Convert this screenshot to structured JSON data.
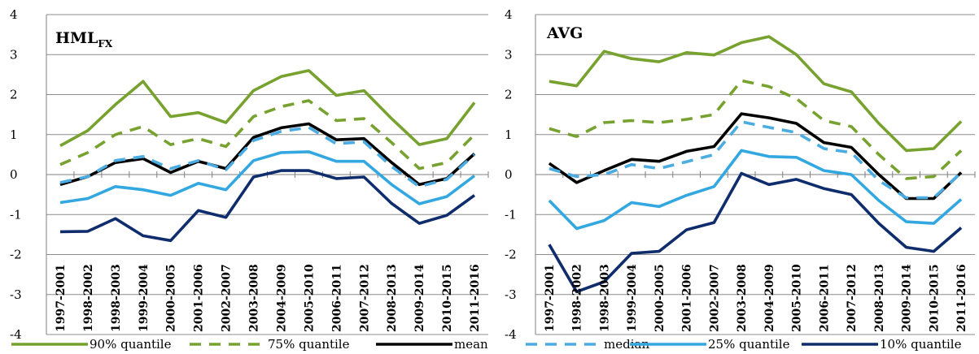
{
  "chart_data": [
    {
      "type": "line",
      "title": "HML",
      "title_subscript": "FX",
      "xlabel": "",
      "ylabel": "",
      "ylim": [
        -4,
        4
      ],
      "yticks": [
        "-4",
        "-3",
        "-2",
        "-1",
        "0",
        "1",
        "2",
        "3",
        "4"
      ],
      "grid": true,
      "categories": [
        "1997-2001",
        "1998-2002",
        "1998-2003",
        "1999-2004",
        "2000-2005",
        "2001-2006",
        "2002-2007",
        "2003-2008",
        "2004-2009",
        "2005-2010",
        "2006-2011",
        "2007-2012",
        "2008-2013",
        "2009-2014",
        "2010-2015",
        "2011-2016"
      ],
      "series": [
        {
          "name": "90% quantile",
          "color": "#77A22F",
          "dash": "solid",
          "values": [
            0.72,
            1.1,
            1.75,
            2.33,
            1.45,
            1.55,
            1.3,
            2.1,
            2.45,
            2.6,
            1.98,
            2.1,
            1.4,
            0.75,
            0.9,
            1.8
          ]
        },
        {
          "name": "75% quantile",
          "color": "#77A22F",
          "dash": "dashed",
          "values": [
            0.25,
            0.55,
            1.0,
            1.2,
            0.75,
            0.9,
            0.7,
            1.45,
            1.7,
            1.85,
            1.35,
            1.4,
            0.8,
            0.15,
            0.3,
            1.0
          ]
        },
        {
          "name": "mean",
          "color": "#000000",
          "dash": "solid",
          "values": [
            -0.25,
            -0.05,
            0.3,
            0.4,
            0.05,
            0.33,
            0.15,
            0.93,
            1.17,
            1.27,
            0.87,
            0.9,
            0.3,
            -0.25,
            -0.1,
            0.52
          ]
        },
        {
          "name": "median",
          "color": "#4BACE1",
          "dash": "dashed",
          "values": [
            -0.2,
            -0.05,
            0.35,
            0.45,
            0.15,
            0.35,
            0.12,
            0.85,
            1.08,
            1.18,
            0.77,
            0.82,
            0.2,
            -0.3,
            -0.12,
            0.5
          ]
        },
        {
          "name": "25% quantile",
          "color": "#33A8E0",
          "dash": "solid",
          "values": [
            -0.7,
            -0.6,
            -0.3,
            -0.38,
            -0.52,
            -0.22,
            -0.38,
            0.35,
            0.55,
            0.57,
            0.33,
            0.33,
            -0.25,
            -0.73,
            -0.55,
            -0.03
          ]
        },
        {
          "name": "10% quantile",
          "color": "#0F2C6C",
          "dash": "solid",
          "values": [
            -1.43,
            -1.42,
            -1.1,
            -1.53,
            -1.65,
            -0.9,
            -1.07,
            -0.06,
            0.1,
            0.1,
            -0.1,
            -0.06,
            -0.72,
            -1.22,
            -1.02,
            -0.52
          ]
        }
      ]
    },
    {
      "type": "line",
      "title": "AVG",
      "xlabel": "",
      "ylabel": "",
      "ylim": [
        -4,
        4
      ],
      "yticks": [
        "-4",
        "-3",
        "-2",
        "-1",
        "0",
        "1",
        "2",
        "3",
        "4"
      ],
      "grid": true,
      "categories": [
        "1997-2001",
        "1998-2002",
        "1998-2003",
        "1999-2004",
        "2000-2005",
        "2001-2006",
        "2002-2007",
        "2003-2008",
        "2004-2009",
        "2005-2010",
        "2006-2011",
        "2007-2012",
        "2008-2013",
        "2009-2014",
        "2010-2015",
        "2011-2016"
      ],
      "series": [
        {
          "name": "90% quantile",
          "color": "#77A22F",
          "dash": "solid",
          "values": [
            2.33,
            2.22,
            3.08,
            2.9,
            2.82,
            3.05,
            2.99,
            3.3,
            3.45,
            3.0,
            2.27,
            2.07,
            1.28,
            0.6,
            0.65,
            1.33
          ]
        },
        {
          "name": "75% quantile",
          "color": "#77A22F",
          "dash": "dashed",
          "values": [
            1.15,
            0.95,
            1.3,
            1.35,
            1.3,
            1.38,
            1.5,
            2.35,
            2.2,
            1.9,
            1.35,
            1.2,
            0.5,
            -0.1,
            -0.05,
            0.6
          ]
        },
        {
          "name": "mean",
          "color": "#000000",
          "dash": "solid",
          "values": [
            0.28,
            -0.2,
            0.1,
            0.38,
            0.33,
            0.58,
            0.7,
            1.52,
            1.42,
            1.28,
            0.8,
            0.68,
            0.0,
            -0.6,
            -0.6,
            0.05
          ]
        },
        {
          "name": "median",
          "color": "#4BACE1",
          "dash": "dashed",
          "values": [
            0.15,
            -0.05,
            0.0,
            0.25,
            0.15,
            0.32,
            0.5,
            1.32,
            1.18,
            1.05,
            0.65,
            0.55,
            -0.15,
            -0.58,
            -0.58,
            0.05
          ]
        },
        {
          "name": "25% quantile",
          "color": "#33A8E0",
          "dash": "solid",
          "values": [
            -0.65,
            -1.35,
            -1.15,
            -0.7,
            -0.8,
            -0.52,
            -0.3,
            0.6,
            0.45,
            0.43,
            0.1,
            0.0,
            -0.65,
            -1.18,
            -1.22,
            -0.62
          ]
        },
        {
          "name": "10% quantile",
          "color": "#0F2C6C",
          "dash": "solid",
          "values": [
            -1.75,
            -2.93,
            -2.68,
            -1.97,
            -1.92,
            -1.38,
            -1.2,
            0.03,
            -0.25,
            -0.12,
            -0.35,
            -0.5,
            -1.22,
            -1.82,
            -1.92,
            -1.33
          ]
        }
      ]
    }
  ],
  "legend": [
    {
      "label": "90% quantile",
      "color": "#77A22F",
      "dash": "solid"
    },
    {
      "label": "75% quantile",
      "color": "#77A22F",
      "dash": "dashed"
    },
    {
      "label": "mean",
      "color": "#000000",
      "dash": "solid"
    },
    {
      "label": "median",
      "color": "#4BACE1",
      "dash": "dashed"
    },
    {
      "label": "25% quantile",
      "color": "#33A8E0",
      "dash": "solid"
    },
    {
      "label": "10% quantile",
      "color": "#0F2C6C",
      "dash": "solid"
    }
  ]
}
